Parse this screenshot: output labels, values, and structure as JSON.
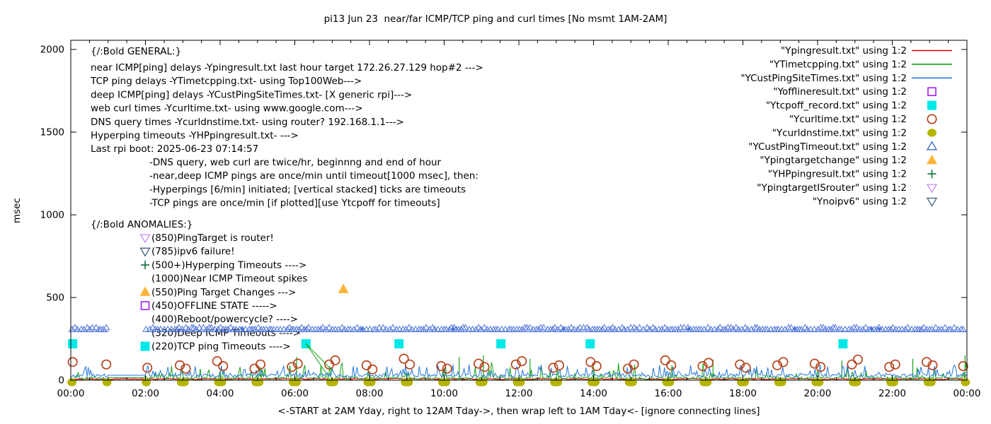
{
  "chart_data": {
    "type": "line+scatter",
    "title": "pi13 Jun 23  near/far ICMP/TCP ping and curl times [No msmt 1AM-2AM]",
    "xlabel": "<-START at 2AM Yday, right to 12AM Tday->, then wrap left to 1AM Tday<- [ignore connecting lines]",
    "ylabel": "msec",
    "x_ticks": [
      "00:00",
      "02:00",
      "04:00",
      "06:00",
      "08:00",
      "10:00",
      "12:00",
      "14:00",
      "16:00",
      "18:00",
      "20:00",
      "22:00",
      "00:00"
    ],
    "y_ticks": [
      0,
      500,
      1000,
      1500,
      2000
    ],
    "xlim_hours": [
      0,
      24
    ],
    "ylim": [
      0,
      2000
    ],
    "grid": false,
    "no_measurement_window_hours": [
      1,
      2
    ],
    "legend": {
      "position": "top-right-inside",
      "entries": [
        {
          "label": "\"Ypingresult.txt\" using 1:2",
          "marker": "line",
          "color": "#e60000"
        },
        {
          "label": "\"YTimetcpping.txt\" using 1:2",
          "marker": "line",
          "color": "#17a317"
        },
        {
          "label": "\"YCustPingSiteTimes.txt\" using 1:2",
          "marker": "line",
          "color": "#2878d8"
        },
        {
          "label": "\"Yofflineresult.txt\" using 1:2",
          "marker": "square-open",
          "color": "#a020f0"
        },
        {
          "label": "\"Ytcpoff_record.txt\" using 1:2",
          "marker": "square-filled",
          "color": "#00e8e8"
        },
        {
          "label": "\"Ycurltime.txt\" using 1:2",
          "marker": "circle-open",
          "color": "#b5441d"
        },
        {
          "label": "\"Ycurldnstime.txt\" using 1:2",
          "marker": "circle-filled",
          "color": "#b5b400"
        },
        {
          "label": "\"YCustPingTimeout.txt\" using 1:2",
          "marker": "triangle-up-open",
          "color": "#3465c8"
        },
        {
          "label": "\"Ypingtargetchange\" using 1:2",
          "marker": "triangle-up-filled",
          "color": "#fcb53a"
        },
        {
          "label": "\"YHPpingresult.txt\" using 1:2",
          "marker": "plus",
          "color": "#11703c"
        },
        {
          "label": "\"YpingtargetISrouter\" using 1:2",
          "marker": "triangle-down-open",
          "color": "#c88df0"
        },
        {
          "label": "\"Ynoipv6\" using 1:2",
          "marker": "triangle-down-open",
          "color": "#3c617c"
        }
      ]
    },
    "annotations": {
      "general_header": "{/:Bold GENERAL:}",
      "general_lines": [
        "near ICMP[ping] delays -Ypingresult.txt last hour target 172.26.27.129 hop#2 --->",
        "TCP ping delays -YTimetcpping.txt- using Top100Web--->",
        "deep ICMP[ping] delays -YCustPingSiteTimes.txt- [X generic rpi]--->",
        "web curl times -Ycurltime.txt- using www.google.com--->",
        "DNS query times -Ycurldnstime.txt- using router? 192.168.1.1--->",
        "Hyperping timeouts -YHPpingresult.txt- --->",
        "Last rpi boot: 2025-06-23 07:14:57"
      ],
      "general_indent_lines": [
        "-DNS query, web curl are twice/hr, beginnng and end of hour",
        "-near,deep ICMP pings are once/min until timeout[1000 msec], then:",
        " -Hyperpings [6/min] initiated; [vertical stacked] ticks are timeouts",
        "-TCP pings are once/min [if plotted][use Ytcpoff for timeouts]"
      ],
      "anomalies_header": "{/:Bold ANOMALIES:}",
      "anomalies": [
        {
          "marker": "triangle-down-open",
          "marker_color": "#c88df0",
          "text": "(850)PingTarget is router!"
        },
        {
          "marker": "triangle-down-open",
          "marker_color": "#3c617c",
          "text": "(785)ipv6 failure!"
        },
        {
          "marker": "plus",
          "marker_color": "#11703c",
          "text": "(500+)Hyperping Timeouts ---->"
        },
        {
          "marker": null,
          "marker_color": null,
          "text": "(1000)Near ICMP Timeout spikes"
        },
        {
          "marker": "triangle-up-filled",
          "marker_color": "#fcb53a",
          "text": "(550)Ping Target Changes --->"
        },
        {
          "marker": "square-open",
          "marker_color": "#a020f0",
          "text": "(450)OFFLINE STATE ----->"
        },
        {
          "marker": null,
          "marker_color": null,
          "text": "(400)Reboot/powercycle? ---->"
        },
        {
          "marker": null,
          "marker_color": null,
          "text": "(320)Deep ICMP Timeouts ---->"
        },
        {
          "marker": "square-filled",
          "marker_color": "#00e8e8",
          "text": "(220)TCP ping Timeouts ---->"
        }
      ]
    },
    "series": [
      {
        "id": "ypingresult",
        "type": "noise-line",
        "color": "#e60000",
        "base_msec": [
          4,
          10
        ]
      },
      {
        "id": "ytimetcpping",
        "type": "grass-line",
        "color": "#17a317",
        "base_msec": [
          5,
          20
        ],
        "spike_prob": 0.13,
        "spike_msec": [
          25,
          110
        ],
        "gap_value": 15,
        "tall_spikes": [
          [
            6.05,
            140
          ],
          [
            10.4,
            140
          ],
          [
            11.05,
            150
          ],
          [
            12.3,
            130
          ],
          [
            17.2,
            125
          ],
          [
            20.65,
            120
          ],
          [
            22.55,
            130
          ],
          [
            23.95,
            150
          ]
        ]
      },
      {
        "id": "ycustpingsitetimes",
        "type": "grass-line",
        "color": "#2878d8",
        "base_msec": [
          18,
          38
        ],
        "spike_prob": 0.32,
        "spike_msec": [
          28,
          95
        ],
        "gap_value": 30,
        "tall_spikes": []
      },
      {
        "id": "yofflineresult",
        "type": "points",
        "marker": "square-open",
        "color": "#a020f0",
        "points": []
      },
      {
        "id": "ytcpoff_record",
        "type": "points",
        "marker": "square-filled",
        "color": "#00e8e8",
        "points": [
          [
            0.05,
            220
          ],
          [
            6.3,
            220
          ],
          [
            8.79,
            220
          ],
          [
            11.52,
            220
          ],
          [
            13.91,
            220
          ],
          [
            20.68,
            220
          ]
        ]
      },
      {
        "id": "ycurltime",
        "type": "points",
        "marker": "circle-open",
        "color": "#b5441d",
        "points": [
          [
            0.05,
            110
          ],
          [
            0.95,
            95
          ],
          [
            2.05,
            75
          ],
          [
            2.92,
            90
          ],
          [
            3.08,
            70
          ],
          [
            3.92,
            115
          ],
          [
            4.08,
            85
          ],
          [
            4.92,
            70
          ],
          [
            5.08,
            95
          ],
          [
            5.92,
            80
          ],
          [
            6.08,
            100
          ],
          [
            6.92,
            95
          ],
          [
            7.08,
            120
          ],
          [
            7.92,
            90
          ],
          [
            8.08,
            65
          ],
          [
            8.92,
            130
          ],
          [
            9.08,
            95
          ],
          [
            9.92,
            85
          ],
          [
            10.08,
            70
          ],
          [
            10.92,
            100
          ],
          [
            11.08,
            80
          ],
          [
            11.92,
            95
          ],
          [
            12.08,
            115
          ],
          [
            12.92,
            75
          ],
          [
            13.08,
            90
          ],
          [
            13.92,
            110
          ],
          [
            14.08,
            85
          ],
          [
            14.92,
            70
          ],
          [
            15.08,
            95
          ],
          [
            15.92,
            120
          ],
          [
            16.08,
            90
          ],
          [
            16.92,
            85
          ],
          [
            17.08,
            105
          ],
          [
            17.92,
            95
          ],
          [
            18.08,
            75
          ],
          [
            18.92,
            90
          ],
          [
            19.08,
            110
          ],
          [
            19.92,
            100
          ],
          [
            20.08,
            80
          ],
          [
            20.92,
            95
          ],
          [
            21.08,
            125
          ],
          [
            21.92,
            80
          ],
          [
            22.08,
            95
          ],
          [
            22.92,
            110
          ],
          [
            23.08,
            90
          ],
          [
            23.9,
            85
          ]
        ]
      },
      {
        "id": "ycurldnstime",
        "type": "points",
        "marker": "circle-filled",
        "color": "#b5b400",
        "y_value": 0,
        "x_list": [
          0.03,
          0.97,
          2.02,
          2.96,
          3.04,
          3.96,
          4.04,
          4.96,
          5.04,
          5.96,
          6.04,
          6.96,
          7.04,
          7.96,
          8.04,
          8.96,
          9.04,
          9.96,
          10.04,
          10.96,
          11.04,
          11.96,
          12.04,
          12.96,
          13.04,
          13.96,
          14.04,
          14.96,
          15.04,
          15.96,
          16.04,
          16.96,
          17.04,
          17.96,
          18.04,
          18.96,
          19.04,
          19.96,
          20.04,
          20.96,
          21.04,
          21.96,
          22.04,
          22.96,
          23.04,
          23.96
        ]
      },
      {
        "id": "ycustpingtimeout",
        "type": "band",
        "marker": "triangle-up-open",
        "color": "#4a73d8",
        "band_msec": 320,
        "line_msec": 293,
        "segments_hours": [
          [
            0.02,
            1.0
          ],
          [
            2.0,
            23.97
          ]
        ],
        "filled_dots_hours": [
          4.6,
          7.8,
          10.25,
          13.2,
          16.55,
          19.4,
          21.45,
          21.65
        ]
      },
      {
        "id": "ypingtargetchange",
        "type": "points",
        "marker": "triangle-up-filled",
        "color": "#fcb53a",
        "points": [
          [
            7.3,
            550
          ]
        ]
      },
      {
        "id": "yhppingresult",
        "type": "connector",
        "color": "#17a317",
        "polylines_hours_msec": [
          [
            [
              6.3,
              220
            ],
            [
              7.02,
              55
            ]
          ],
          [
            [
              6.3,
              220
            ],
            [
              6.88,
              30
            ]
          ]
        ]
      },
      {
        "id": "ypingtargetisrouter",
        "type": "points",
        "marker": "triangle-down-open",
        "color": "#c88df0",
        "points": []
      },
      {
        "id": "ynoipv6",
        "type": "points",
        "marker": "triangle-down-open",
        "color": "#3c617c",
        "points": []
      }
    ]
  }
}
